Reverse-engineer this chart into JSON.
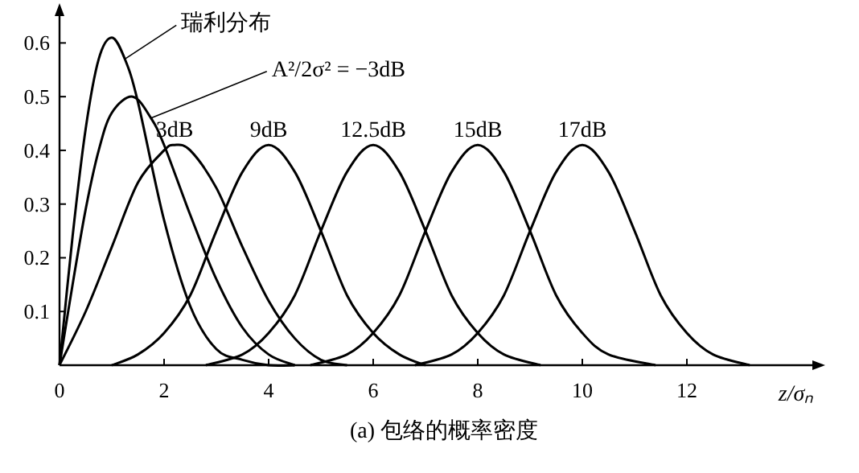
{
  "chart_data": {
    "type": "line",
    "title": "(a) 包络的概率密度",
    "xlabel": "z/σₙ",
    "xlim": [
      0,
      14.4
    ],
    "ylim": [
      0,
      0.65
    ],
    "xticks": [
      0,
      2,
      4,
      6,
      8,
      10,
      12
    ],
    "yticks": [
      0.1,
      0.2,
      0.3,
      0.4,
      0.5,
      0.6
    ],
    "grid": false,
    "marker": "none",
    "line_style": "solid",
    "series": [
      {
        "name": "瑞利分布",
        "color": "#000000",
        "x": [
          0,
          0.25,
          0.5,
          0.75,
          1,
          1.25,
          1.5,
          2,
          2.5,
          3,
          3.5,
          4,
          4.5
        ],
        "values": [
          0,
          0.24,
          0.44,
          0.57,
          0.61,
          0.57,
          0.49,
          0.27,
          0.11,
          0.03,
          0.01,
          0,
          0
        ]
      },
      {
        "name": "A²/2σ² = −3dB",
        "color": "#000000",
        "x": [
          0,
          0.25,
          0.5,
          0.75,
          1,
          1.4,
          1.75,
          2,
          2.5,
          3,
          3.5,
          4,
          4.5
        ],
        "values": [
          0,
          0.15,
          0.29,
          0.4,
          0.47,
          0.5,
          0.46,
          0.41,
          0.28,
          0.16,
          0.07,
          0.02,
          0
        ]
      },
      {
        "name": "3dB",
        "color": "#000000",
        "x": [
          0,
          0.5,
          1,
          1.5,
          2,
          2.2,
          2.5,
          3,
          3.5,
          4,
          4.5,
          5,
          5.5
        ],
        "values": [
          0,
          0.1,
          0.22,
          0.34,
          0.4,
          0.41,
          0.4,
          0.33,
          0.22,
          0.12,
          0.05,
          0.01,
          0
        ]
      },
      {
        "name": "9dB",
        "color": "#000000",
        "x": [
          1,
          1.5,
          2,
          2.5,
          3,
          3.5,
          4,
          4.5,
          5,
          5.5,
          6,
          6.5,
          7
        ],
        "values": [
          0,
          0.02,
          0.06,
          0.13,
          0.25,
          0.36,
          0.41,
          0.36,
          0.25,
          0.13,
          0.06,
          0.02,
          0
        ]
      },
      {
        "name": "12.5dB",
        "color": "#000000",
        "x": [
          2.8,
          3.5,
          4,
          4.5,
          5,
          5.5,
          6,
          6.5,
          7,
          7.5,
          8,
          8.5,
          9.2
        ],
        "values": [
          0,
          0.02,
          0.06,
          0.13,
          0.25,
          0.36,
          0.41,
          0.36,
          0.25,
          0.13,
          0.06,
          0.02,
          0
        ]
      },
      {
        "name": "15dB",
        "color": "#000000",
        "x": [
          4.8,
          5.5,
          6,
          6.5,
          7,
          7.5,
          8,
          8.5,
          9,
          9.5,
          10,
          10.5,
          11.4
        ],
        "values": [
          0,
          0.02,
          0.06,
          0.13,
          0.25,
          0.36,
          0.41,
          0.36,
          0.25,
          0.13,
          0.06,
          0.02,
          0
        ]
      },
      {
        "name": "17dB",
        "color": "#000000",
        "x": [
          6.8,
          7.5,
          8,
          8.5,
          9,
          9.5,
          10,
          10.5,
          11,
          11.5,
          12,
          12.5,
          13.2
        ],
        "values": [
          0,
          0.02,
          0.06,
          0.13,
          0.25,
          0.36,
          0.41,
          0.36,
          0.25,
          0.13,
          0.06,
          0.02,
          0
        ]
      }
    ]
  }
}
